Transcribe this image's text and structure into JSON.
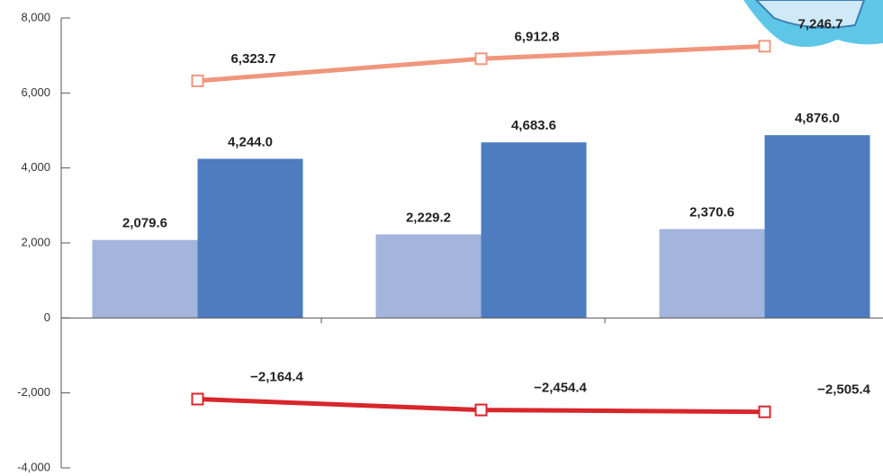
{
  "chart_data": {
    "type": "bar",
    "categories": [
      null,
      null,
      null
    ],
    "series": [
      {
        "type": "bar",
        "color": "#a3b4dd",
        "values": [
          2079.6,
          2229.2,
          2370.6
        ],
        "value_labels": [
          "2,079.6",
          "2,229.2",
          "2,370.6"
        ]
      },
      {
        "type": "bar",
        "color": "#4d7cc0",
        "values": [
          4244.0,
          4683.6,
          4876.0
        ],
        "value_labels": [
          "4,244.0",
          "4,683.6",
          "4,876.0"
        ]
      },
      {
        "type": "line",
        "color": "#f0967c",
        "values": [
          6323.7,
          6912.8,
          7246.7
        ],
        "value_labels": [
          "6,323.7",
          "6,912.8",
          "7,246.7"
        ]
      },
      {
        "type": "line",
        "color": "#d8262b",
        "values": [
          -2164.4,
          -2454.4,
          -2505.4
        ],
        "value_labels": [
          "−2,164.4",
          "−2,454.4",
          "−2,505.4"
        ]
      }
    ],
    "ylim": [
      -4000,
      8000
    ],
    "yticks": [
      {
        "value": -4000,
        "label": "-4,000"
      },
      {
        "value": -2000,
        "label": "-2,000"
      },
      0,
      {
        "value": 2000,
        "label": "2,000"
      },
      {
        "value": 4000,
        "label": "4,000"
      },
      {
        "value": 6000,
        "label": "6,000"
      },
      {
        "value": 8000,
        "label": "8,000"
      }
    ],
    "grid": false
  }
}
